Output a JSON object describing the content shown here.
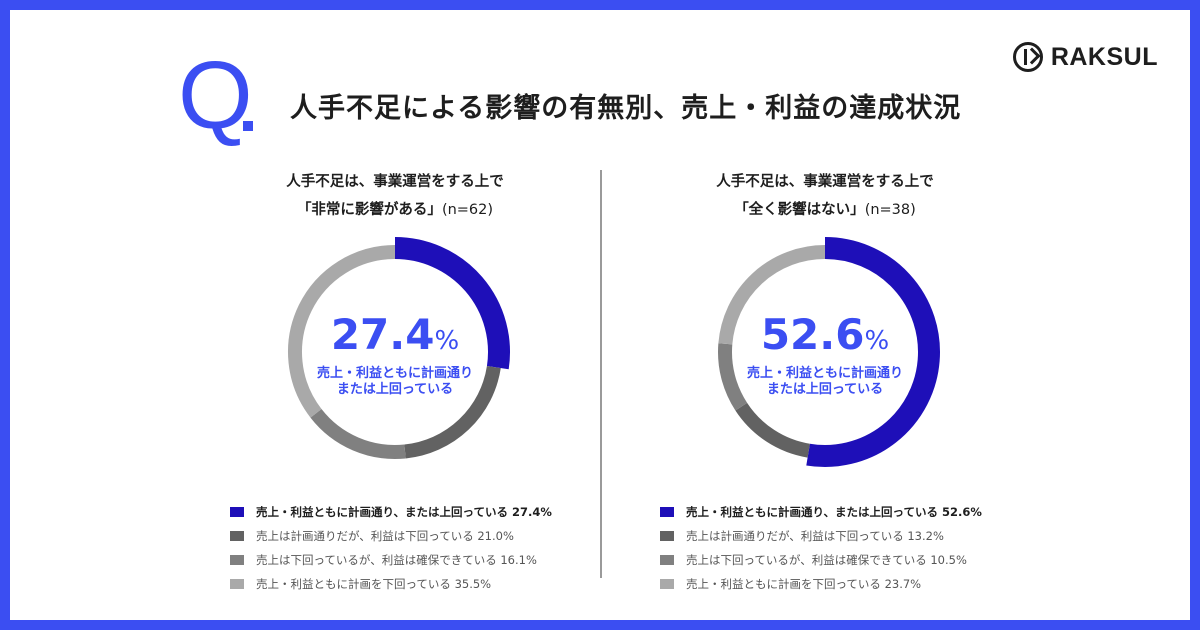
{
  "header": {
    "q_letter": "Q",
    "title": "人手不足による影響の有無別、売上・利益の達成状況"
  },
  "brand": {
    "name": "RAKSUL"
  },
  "colors": {
    "accent": "#3b4ef2",
    "series": [
      "#1e0fb8",
      "#626262",
      "#808080",
      "#a9a9a9"
    ]
  },
  "panels": [
    {
      "title_line1": "人手不足は、事業運営をする上で",
      "title_line2": "「非常に影響がある」",
      "sample": "(n=62)",
      "center_value": "27.4",
      "center_unit": "%",
      "center_label_line1": "売上・利益ともに計画通り",
      "center_label_line2": "または上回っている",
      "legend": [
        "売上・利益ともに計画通り、または上回っている 27.4%",
        "売上は計画通りだが、利益は下回っている 21.0%",
        "売上は下回っているが、利益は確保できている 16.1%",
        "売上・利益ともに計画を下回っている 35.5%"
      ]
    },
    {
      "title_line1": "人手不足は、事業運営をする上で",
      "title_line2": "「全く影響はない」",
      "sample": "(n=38)",
      "center_value": "52.6",
      "center_unit": "%",
      "center_label_line1": "売上・利益ともに計画通り",
      "center_label_line2": "または上回っている",
      "legend": [
        "売上・利益ともに計画通り、または上回っている 52.6%",
        "売上は計画通りだが、利益は下回っている 13.2%",
        "売上は下回っているが、利益は確保できている 10.5%",
        "売上・利益ともに計画を下回っている 23.7%"
      ]
    }
  ],
  "chart_data": [
    {
      "type": "pie",
      "title": "人手不足は、事業運営をする上で「非常に影響がある」(n=62)",
      "categories": [
        "売上・利益ともに計画通り、または上回っている",
        "売上は計画通りだが、利益は下回っている",
        "売上は下回っているが、利益は確保できている",
        "売上・利益ともに計画を下回っている"
      ],
      "values": [
        27.4,
        21.0,
        16.1,
        35.5
      ],
      "colors": [
        "#1e0fb8",
        "#626262",
        "#808080",
        "#a9a9a9"
      ],
      "legend": "bottom"
    },
    {
      "type": "pie",
      "title": "人手不足は、事業運営をする上で「全く影響はない」(n=38)",
      "categories": [
        "売上・利益ともに計画通り、または上回っている",
        "売上は計画通りだが、利益は下回っている",
        "売上は下回っているが、利益は確保できている",
        "売上・利益ともに計画を下回っている"
      ],
      "values": [
        52.6,
        13.2,
        10.5,
        23.7
      ],
      "colors": [
        "#1e0fb8",
        "#626262",
        "#808080",
        "#a9a9a9"
      ],
      "legend": "bottom"
    }
  ]
}
